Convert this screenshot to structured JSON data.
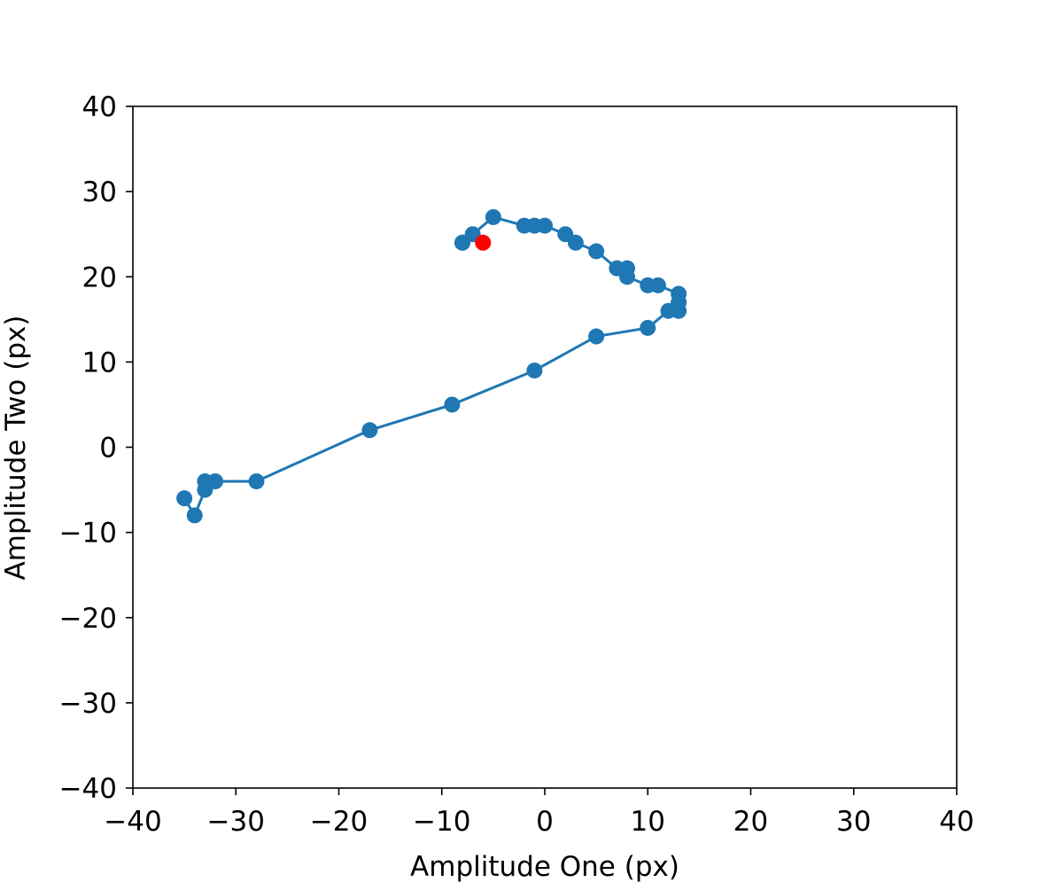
{
  "chart_data": {
    "type": "line",
    "title": "",
    "xlabel": "Amplitude One (px)",
    "ylabel": "Amplitude Two (px)",
    "xlim": [
      -40,
      40
    ],
    "ylim": [
      -40,
      40
    ],
    "xticks": [
      -40,
      -30,
      -20,
      -10,
      0,
      10,
      20,
      30,
      40
    ],
    "yticks": [
      -40,
      -30,
      -20,
      -10,
      0,
      10,
      20,
      30,
      40
    ],
    "xtick_labels": [
      "−40",
      "−30",
      "−20",
      "−10",
      "0",
      "10",
      "20",
      "30",
      "40"
    ],
    "ytick_labels": [
      "−40",
      "−30",
      "−20",
      "−10",
      "0",
      "10",
      "20",
      "30",
      "40"
    ],
    "grid": false,
    "legend": "none",
    "series": [
      {
        "color": "#1f77b4",
        "marker": "circle",
        "points": [
          [
            -8,
            24
          ],
          [
            -8,
            24
          ],
          [
            -7,
            25
          ],
          [
            -5,
            27
          ],
          [
            -2,
            26
          ],
          [
            -1,
            26
          ],
          [
            0,
            26
          ],
          [
            2,
            25
          ],
          [
            3,
            24
          ],
          [
            5,
            23
          ],
          [
            7,
            21
          ],
          [
            8,
            21
          ],
          [
            8,
            20
          ],
          [
            10,
            19
          ],
          [
            11,
            19
          ],
          [
            13,
            18
          ],
          [
            13,
            17
          ],
          [
            13,
            16
          ],
          [
            12,
            16
          ],
          [
            10,
            14
          ],
          [
            5,
            13
          ],
          [
            -1,
            9
          ],
          [
            -9,
            5
          ],
          [
            -17,
            2
          ],
          [
            -28,
            -4
          ],
          [
            -32,
            -4
          ],
          [
            -33,
            -4
          ],
          [
            -33,
            -5
          ],
          [
            -34,
            -8
          ],
          [
            -35,
            -6
          ]
        ]
      }
    ],
    "highlight_point": {
      "color": "#ff0000",
      "point": [
        -6,
        24
      ]
    }
  }
}
